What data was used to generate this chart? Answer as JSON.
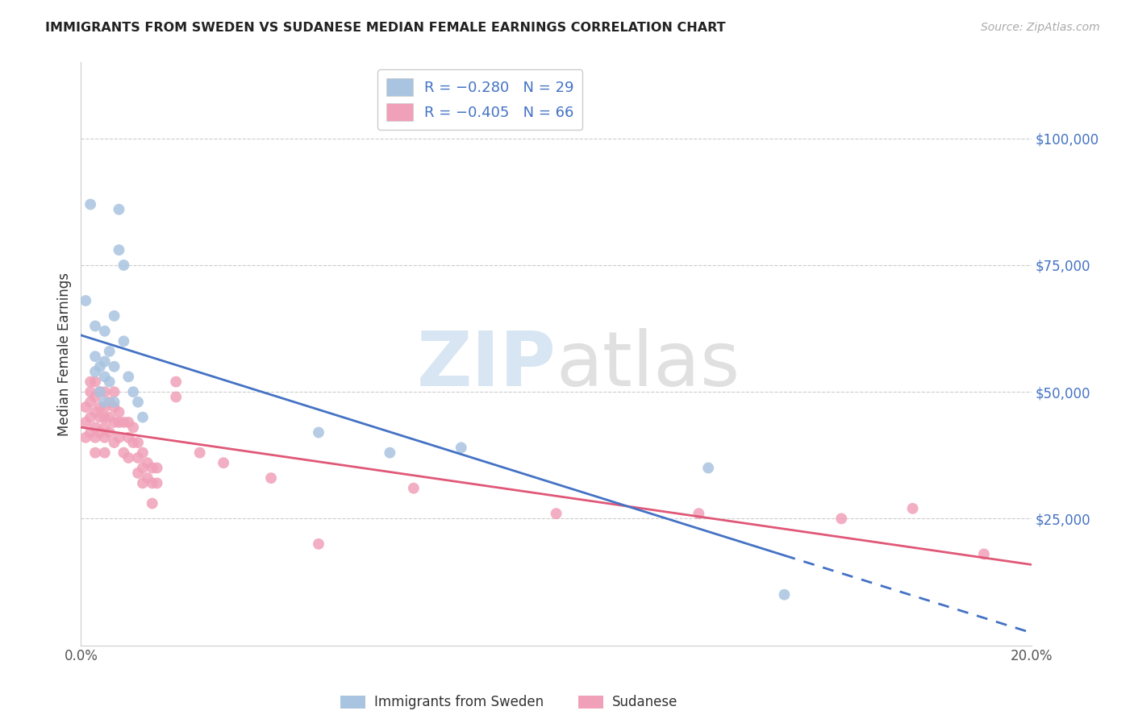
{
  "title": "IMMIGRANTS FROM SWEDEN VS SUDANESE MEDIAN FEMALE EARNINGS CORRELATION CHART",
  "source": "Source: ZipAtlas.com",
  "ylabel": "Median Female Earnings",
  "xlim": [
    0.0,
    0.2
  ],
  "ylim": [
    0,
    115000
  ],
  "color_blue": "#a8c4e0",
  "color_pink": "#f0a0b8",
  "line_blue": "#4472c4",
  "line_pink": "#e05878",
  "legend_label1": "Immigrants from Sweden",
  "legend_label2": "Sudanese",
  "legend_r1": "R = −0.280",
  "legend_n1": "N = 29",
  "legend_r2": "R = −0.405",
  "legend_n2": "N = 66",
  "sweden_x": [
    0.001,
    0.002,
    0.003,
    0.003,
    0.003,
    0.004,
    0.004,
    0.005,
    0.005,
    0.005,
    0.005,
    0.006,
    0.006,
    0.007,
    0.007,
    0.007,
    0.008,
    0.008,
    0.009,
    0.009,
    0.01,
    0.011,
    0.012,
    0.013,
    0.05,
    0.065,
    0.08,
    0.132,
    0.148
  ],
  "sweden_y": [
    68000,
    87000,
    54000,
    57000,
    63000,
    50000,
    55000,
    62000,
    56000,
    53000,
    48000,
    58000,
    52000,
    65000,
    55000,
    48000,
    78000,
    86000,
    60000,
    75000,
    53000,
    50000,
    48000,
    45000,
    42000,
    38000,
    39000,
    35000,
    10000
  ],
  "sudanese_x": [
    0.001,
    0.001,
    0.001,
    0.002,
    0.002,
    0.002,
    0.002,
    0.002,
    0.003,
    0.003,
    0.003,
    0.003,
    0.003,
    0.003,
    0.004,
    0.004,
    0.004,
    0.004,
    0.005,
    0.005,
    0.005,
    0.005,
    0.005,
    0.005,
    0.006,
    0.006,
    0.006,
    0.007,
    0.007,
    0.007,
    0.007,
    0.008,
    0.008,
    0.008,
    0.009,
    0.009,
    0.01,
    0.01,
    0.01,
    0.011,
    0.011,
    0.012,
    0.012,
    0.012,
    0.013,
    0.013,
    0.013,
    0.014,
    0.014,
    0.015,
    0.015,
    0.015,
    0.016,
    0.016,
    0.02,
    0.02,
    0.025,
    0.03,
    0.04,
    0.05,
    0.07,
    0.1,
    0.13,
    0.16,
    0.175,
    0.19
  ],
  "sudanese_y": [
    47000,
    44000,
    41000,
    52000,
    50000,
    48000,
    45000,
    42000,
    52000,
    49000,
    46000,
    43000,
    41000,
    38000,
    50000,
    47000,
    45000,
    42000,
    50000,
    47000,
    45000,
    43000,
    41000,
    38000,
    48000,
    45000,
    42000,
    50000,
    47000,
    44000,
    40000,
    46000,
    44000,
    41000,
    44000,
    38000,
    44000,
    41000,
    37000,
    43000,
    40000,
    40000,
    37000,
    34000,
    38000,
    35000,
    32000,
    36000,
    33000,
    35000,
    32000,
    28000,
    35000,
    32000,
    52000,
    49000,
    38000,
    36000,
    33000,
    20000,
    31000,
    26000,
    26000,
    25000,
    27000,
    18000
  ]
}
